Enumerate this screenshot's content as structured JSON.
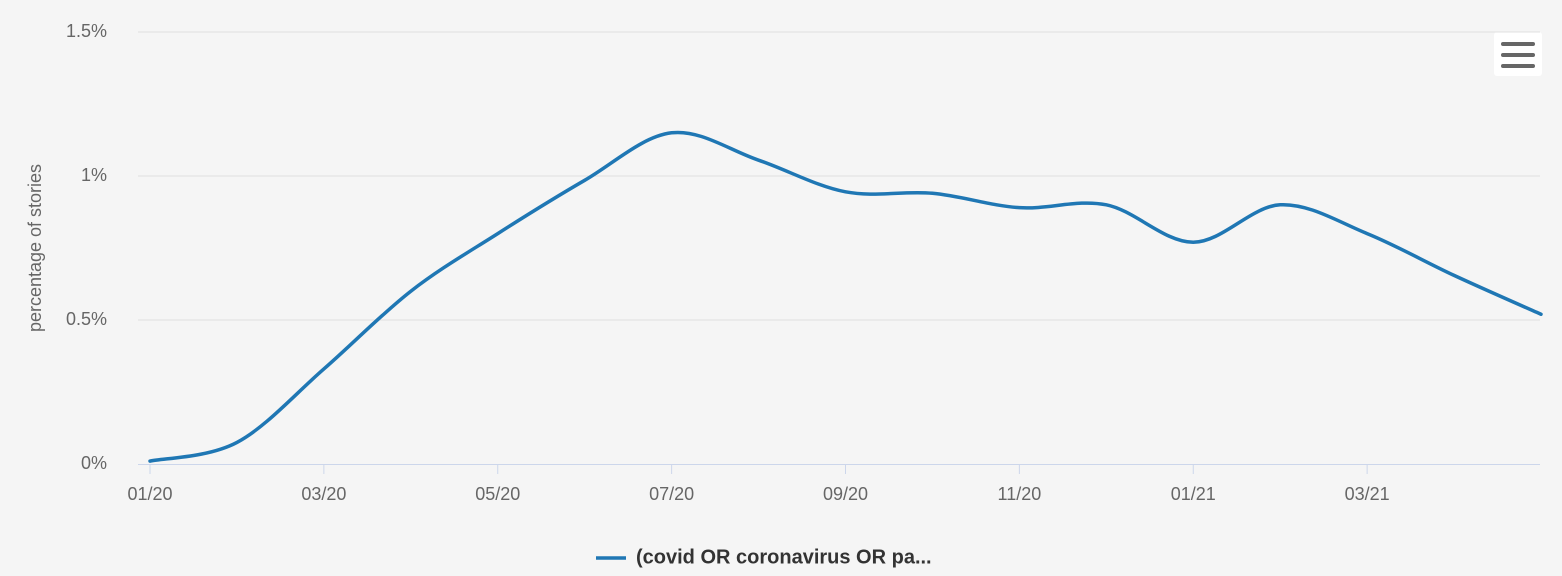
{
  "chart_data": {
    "type": "line",
    "ylabel": "percentage of stories",
    "x": [
      "01/20",
      "02/20",
      "03/20",
      "04/20",
      "05/20",
      "06/20",
      "07/20",
      "08/20",
      "09/20",
      "10/20",
      "11/20",
      "12/20",
      "01/21",
      "02/21",
      "03/21",
      "04/21",
      "05/21"
    ],
    "series": [
      {
        "name": "(covid OR coronavirus OR pa...",
        "color": "#1f77b4",
        "values": [
          0.01,
          0.075,
          0.33,
          0.6,
          0.8,
          0.985,
          1.15,
          1.055,
          0.945,
          0.94,
          0.89,
          0.9,
          0.77,
          0.9,
          0.8,
          0.655,
          0.52
        ]
      }
    ],
    "xticks": [
      "01/20",
      "03/20",
      "05/20",
      "07/20",
      "09/20",
      "11/20",
      "01/21",
      "03/21"
    ],
    "ylim": [
      0,
      1.5
    ],
    "yticks": [
      {
        "value": 0,
        "label": "0%"
      },
      {
        "value": 0.5,
        "label": "0.5%"
      },
      {
        "value": 1,
        "label": "1%"
      },
      {
        "value": 1.5,
        "label": "1.5%"
      }
    ],
    "grid": true
  }
}
